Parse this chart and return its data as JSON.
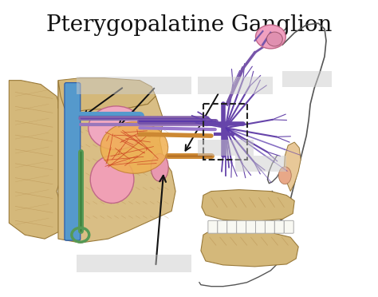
{
  "title": "Pterygopalatine Ganglion",
  "title_fontsize": 20,
  "bg_color": "#ffffff",
  "fig_width": 4.74,
  "fig_height": 3.72,
  "dpi": 100
}
